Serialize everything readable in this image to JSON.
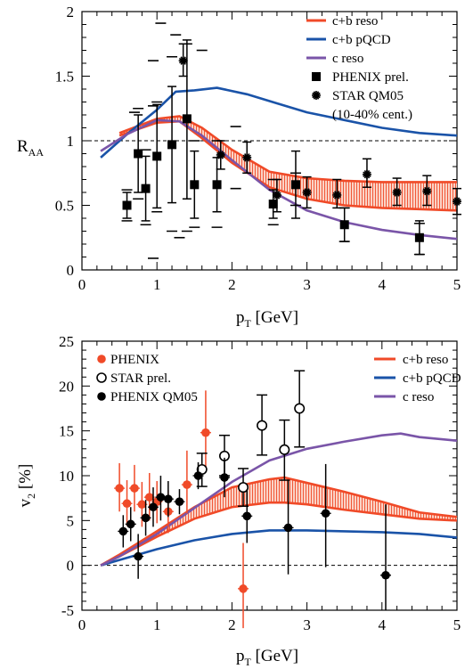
{
  "chart_data": [
    {
      "type": "line",
      "xlabel": "p_T [GeV]",
      "ylabel": "R_AA",
      "xlim": [
        0,
        5
      ],
      "ylim": [
        0,
        2
      ],
      "xticks": [
        "0",
        "1",
        "2",
        "3",
        "4",
        "5"
      ],
      "yticks": [
        "0",
        "0.5",
        "1",
        "1.5",
        "2"
      ],
      "legend_position": "top-right",
      "reference_line": 1,
      "bands": [
        {
          "name": "c+b reso",
          "color": "#f04a28",
          "x": [
            0.5,
            1.0,
            1.3,
            1.6,
            2.0,
            2.5,
            3.0,
            3.5,
            4.0,
            4.5,
            5.0
          ],
          "upper": [
            1.06,
            1.17,
            1.19,
            1.1,
            0.93,
            0.76,
            0.71,
            0.69,
            0.68,
            0.68,
            0.68
          ],
          "lower": [
            1.04,
            1.14,
            1.15,
            1.02,
            0.83,
            0.64,
            0.55,
            0.5,
            0.48,
            0.47,
            0.46
          ]
        }
      ],
      "series": [
        {
          "name": "c+b pQCD",
          "color": "#1a53a8",
          "x": [
            0.25,
            0.6,
            1.0,
            1.25,
            1.5,
            1.8,
            2.2,
            2.6,
            3.0,
            3.5,
            4.0,
            4.5,
            5.0
          ],
          "y": [
            0.87,
            1.05,
            1.24,
            1.38,
            1.39,
            1.41,
            1.36,
            1.29,
            1.22,
            1.16,
            1.1,
            1.06,
            1.04
          ]
        },
        {
          "name": "c reso",
          "color": "#7a55a8",
          "x": [
            0.25,
            0.6,
            1.0,
            1.3,
            1.6,
            2.0,
            2.5,
            3.0,
            3.5,
            4.0,
            4.5,
            5.0
          ],
          "y": [
            0.92,
            1.05,
            1.16,
            1.15,
            1.04,
            0.85,
            0.62,
            0.46,
            0.37,
            0.31,
            0.27,
            0.24
          ]
        }
      ],
      "markers": [
        {
          "name": "PHENIX prel.",
          "symbol": "square",
          "points": [
            {
              "x": 0.6,
              "y": 0.5,
              "lo": 0.4,
              "hi": 0.6,
              "slo": 0.38,
              "shi": 0.62
            },
            {
              "x": 0.75,
              "y": 0.9,
              "lo": 0.6,
              "hi": 1.2,
              "slo": 0.55,
              "shi": 1.25
            },
            {
              "x": 0.85,
              "y": 0.63,
              "lo": 0.38,
              "hi": 0.88,
              "slo": 0.35,
              "shi": 0.93
            },
            {
              "x": 1.0,
              "y": 0.88,
              "lo": 0.48,
              "hi": 1.28,
              "slo": 0.45,
              "shi": 1.3
            },
            {
              "x": 1.2,
              "y": 0.97,
              "lo": 0.52,
              "hi": 1.42,
              "slo": 0.3,
              "shi": 1.65
            },
            {
              "x": 1.4,
              "y": 1.17,
              "lo": 0.55,
              "hi": 1.78,
              "slo": 0.3,
              "shi": 1.75
            },
            {
              "x": 1.5,
              "y": 0.66,
              "lo": 0.4,
              "hi": 0.92,
              "slo": 0.33,
              "shi": 1.0
            },
            {
              "x": 1.8,
              "y": 0.66,
              "lo": 0.45,
              "hi": 0.87,
              "slo": 0.33,
              "shi": 1.0
            },
            {
              "x": 2.55,
              "y": 0.51,
              "lo": 0.4,
              "hi": 0.62,
              "slo": 0.35,
              "shi": 0.7
            },
            {
              "x": 2.85,
              "y": 0.66,
              "lo": 0.4,
              "hi": 0.92,
              "slo": 0.5,
              "shi": 0.75
            },
            {
              "x": 3.5,
              "y": 0.35,
              "lo": 0.22,
              "hi": 0.48,
              "slo": 0.22,
              "shi": 0.48
            },
            {
              "x": 4.5,
              "y": 0.25,
              "lo": 0.12,
              "hi": 0.38,
              "slo": 0.12,
              "shi": 0.36
            }
          ]
        },
        {
          "name": "STAR QM05",
          "extra_legend_label": "(10-40% cent.)",
          "symbol": "star",
          "points": [
            {
              "x": 1.35,
              "y": 1.62,
              "lo": 1.5,
              "hi": 1.75
            },
            {
              "x": 1.85,
              "y": 0.89,
              "lo": 0.78,
              "hi": 1.0
            },
            {
              "x": 2.2,
              "y": 0.87,
              "lo": 0.75,
              "hi": 0.99
            },
            {
              "x": 2.6,
              "y": 0.58,
              "lo": 0.45,
              "hi": 0.7
            },
            {
              "x": 3.0,
              "y": 0.6,
              "lo": 0.48,
              "hi": 0.72
            },
            {
              "x": 3.4,
              "y": 0.58,
              "lo": 0.48,
              "hi": 0.7
            },
            {
              "x": 3.8,
              "y": 0.74,
              "lo": 0.64,
              "hi": 0.86
            },
            {
              "x": 4.2,
              "y": 0.6,
              "lo": 0.5,
              "hi": 0.71
            },
            {
              "x": 4.6,
              "y": 0.61,
              "lo": 0.5,
              "hi": 0.73
            },
            {
              "x": 5.0,
              "y": 0.53,
              "lo": 0.43,
              "hi": 0.63
            }
          ],
          "sys_bars": [
            {
              "x": 1.05,
              "y": 1.91
            },
            {
              "x": 0.95,
              "y": 1.62
            },
            {
              "x": 0.95,
              "y": 1.27
            },
            {
              "x": 1.25,
              "y": 1.82
            },
            {
              "x": 1.6,
              "y": 1.7
            },
            {
              "x": 0.7,
              "y": 1.22
            },
            {
              "x": 0.95,
              "y": 0.09
            },
            {
              "x": 1.3,
              "y": 0.25
            },
            {
              "x": 2.05,
              "y": 1.11
            },
            {
              "x": 2.05,
              "y": 0.63
            }
          ]
        }
      ]
    },
    {
      "type": "line",
      "xlabel": "p_T [GeV]",
      "ylabel": "v_2 [%]",
      "xlim": [
        0,
        5
      ],
      "ylim": [
        -5,
        25
      ],
      "xticks": [
        "0",
        "1",
        "2",
        "3",
        "4",
        "5"
      ],
      "yticks": [
        "-5",
        "0",
        "5",
        "10",
        "15",
        "20",
        "25"
      ],
      "legend_position": "top-right",
      "reference_line": 0,
      "bands": [
        {
          "name": "c+b reso",
          "color": "#f04a28",
          "x": [
            0.25,
            0.5,
            1.0,
            1.5,
            2.0,
            2.5,
            2.7,
            3.0,
            3.5,
            4.0,
            4.5,
            5.0
          ],
          "upper": [
            0.0,
            1.2,
            3.8,
            6.5,
            8.7,
            9.6,
            9.8,
            9.2,
            8.2,
            7.1,
            5.9,
            5.4
          ],
          "lower": [
            0.0,
            1.0,
            3.2,
            5.2,
            6.5,
            7.0,
            7.0,
            6.8,
            6.2,
            5.7,
            5.2,
            5.0
          ]
        }
      ],
      "series": [
        {
          "name": "c+b pQCD",
          "color": "#1a53a8",
          "x": [
            0.25,
            0.5,
            1.0,
            1.5,
            2.0,
            2.5,
            3.0,
            3.5,
            4.0,
            4.5,
            5.0
          ],
          "y": [
            0.0,
            0.6,
            1.8,
            2.8,
            3.5,
            3.9,
            3.9,
            3.8,
            3.7,
            3.5,
            3.1
          ]
        },
        {
          "name": "c reso",
          "color": "#7a55a8",
          "x": [
            0.25,
            0.5,
            1.0,
            1.5,
            2.0,
            2.5,
            3.0,
            3.5,
            4.0,
            4.25,
            4.5,
            5.0
          ],
          "y": [
            0.0,
            1.0,
            3.5,
            6.4,
            9.3,
            11.7,
            13.0,
            13.8,
            14.5,
            14.7,
            14.3,
            13.9
          ]
        }
      ],
      "markers": [
        {
          "name": "PHENIX",
          "symbol": "circle",
          "color": "#f04a28",
          "points": [
            {
              "x": 0.5,
              "y": 8.6,
              "lo": 6.0,
              "hi": 11.4
            },
            {
              "x": 0.6,
              "y": 6.9,
              "lo": 4.4,
              "hi": 9.5
            },
            {
              "x": 0.7,
              "y": 8.6,
              "lo": 6.0,
              "hi": 11.2
            },
            {
              "x": 0.8,
              "y": 6.8,
              "lo": 4.3,
              "hi": 9.3
            },
            {
              "x": 0.9,
              "y": 7.6,
              "lo": 5.0,
              "hi": 10.3
            },
            {
              "x": 1.0,
              "y": 7.1,
              "lo": 4.7,
              "hi": 9.4
            },
            {
              "x": 1.15,
              "y": 6.0,
              "lo": 3.6,
              "hi": 8.4
            },
            {
              "x": 1.4,
              "y": 9.0,
              "lo": 5.8,
              "hi": 12.8
            },
            {
              "x": 1.65,
              "y": 14.8,
              "lo": 10.4,
              "hi": 19.5
            },
            {
              "x": 2.15,
              "y": -2.6,
              "lo": -7.0,
              "hi": 2.5
            }
          ]
        },
        {
          "name": "STAR prel.",
          "symbol": "open-circle",
          "points": [
            {
              "x": 1.6,
              "y": 10.7,
              "lo": 8.8,
              "hi": 12.5
            },
            {
              "x": 1.9,
              "y": 12.2,
              "lo": 10.0,
              "hi": 14.5
            },
            {
              "x": 2.15,
              "y": 8.7,
              "lo": 6.6,
              "hi": 10.8
            },
            {
              "x": 2.4,
              "y": 15.6,
              "lo": 12.3,
              "hi": 19.0
            },
            {
              "x": 2.7,
              "y": 12.9,
              "lo": 9.5,
              "hi": 16.2
            },
            {
              "x": 2.9,
              "y": 17.5,
              "lo": 13.2,
              "hi": 21.7
            }
          ]
        },
        {
          "name": "PHENIX QM05",
          "symbol": "circle",
          "color": "#000000",
          "points": [
            {
              "x": 0.55,
              "y": 3.8,
              "lo": 2.0,
              "hi": 5.6
            },
            {
              "x": 0.65,
              "y": 4.6,
              "lo": 2.7,
              "hi": 6.5
            },
            {
              "x": 0.75,
              "y": 1.0,
              "lo": -1.5,
              "hi": 3.5
            },
            {
              "x": 0.85,
              "y": 5.3,
              "lo": 3.3,
              "hi": 7.3
            },
            {
              "x": 0.95,
              "y": 6.5,
              "lo": 4.3,
              "hi": 8.7
            },
            {
              "x": 1.05,
              "y": 7.6,
              "lo": 5.0,
              "hi": 10.0
            },
            {
              "x": 1.15,
              "y": 7.4,
              "lo": 5.4,
              "hi": 9.4
            },
            {
              "x": 1.3,
              "y": 7.1,
              "lo": 5.7,
              "hi": 8.5
            },
            {
              "x": 1.55,
              "y": 10.0,
              "lo": 8.5,
              "hi": 11.5
            },
            {
              "x": 1.9,
              "y": 9.8,
              "lo": 7.6,
              "hi": 12.0
            },
            {
              "x": 2.2,
              "y": 5.5,
              "lo": 2.5,
              "hi": 8.5
            },
            {
              "x": 2.75,
              "y": 4.2,
              "lo": -1.0,
              "hi": 9.5
            },
            {
              "x": 3.25,
              "y": 5.8,
              "lo": -0.2,
              "hi": 11.3
            },
            {
              "x": 4.05,
              "y": -1.1,
              "lo": -5.0,
              "hi": 6.8
            }
          ]
        }
      ]
    }
  ]
}
